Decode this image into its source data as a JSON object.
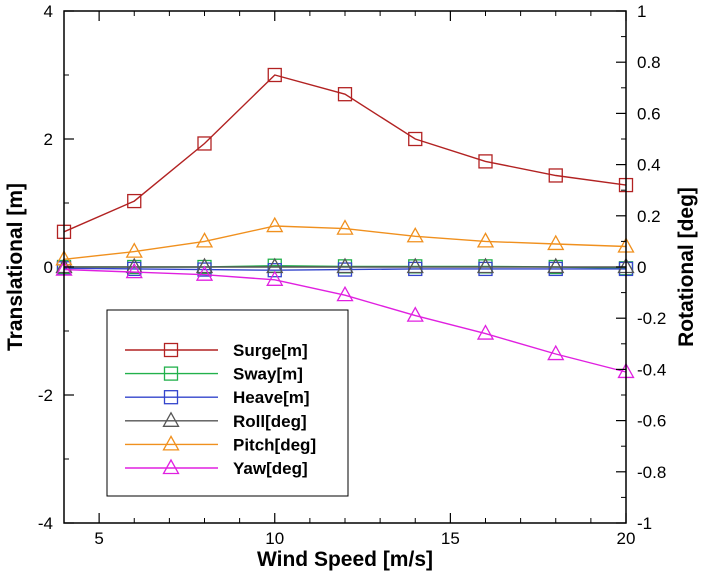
{
  "chart_data": {
    "type": "line",
    "title": "",
    "xlabel": "Wind Speed [m/s]",
    "ylabel": "Translational [m]",
    "y2label": "Rotational [deg]",
    "xlim": [
      4,
      20
    ],
    "ylim": [
      -4,
      4
    ],
    "y2lim": [
      -1,
      1
    ],
    "grid": false,
    "legend_position": "bottom-left",
    "x": [
      4,
      6,
      8,
      10,
      12,
      14,
      16,
      18,
      20
    ],
    "x_ticks": [
      "5",
      "10",
      "15",
      "20"
    ],
    "y_ticks": [
      "4",
      "2",
      "0",
      "-2",
      "-4"
    ],
    "y2_ticks": [
      "1",
      "0.8",
      "0.6",
      "0.4",
      "0.2",
      "0",
      "-0.2",
      "-0.4",
      "-0.6",
      "-0.8",
      "-1"
    ],
    "series": [
      {
        "name": "Surge[m]",
        "axis": "left",
        "color": "#b22222",
        "marker": "square",
        "values": [
          0.55,
          1.03,
          1.93,
          3.0,
          2.7,
          2.0,
          1.65,
          1.43,
          1.28
        ]
      },
      {
        "name": "Sway[m]",
        "axis": "left",
        "color": "#22b14c",
        "marker": "square",
        "values": [
          0.0,
          0.0,
          0.0,
          0.02,
          0.01,
          0.01,
          0.01,
          0.0,
          -0.02
        ]
      },
      {
        "name": "Heave[m]",
        "axis": "left",
        "color": "#3344cc",
        "marker": "square",
        "values": [
          -0.02,
          -0.03,
          -0.04,
          -0.05,
          -0.04,
          -0.03,
          -0.03,
          -0.03,
          -0.03
        ]
      },
      {
        "name": "Roll[deg]",
        "axis": "right",
        "color": "#555555",
        "marker": "triangle",
        "values": [
          0.0,
          0.0,
          0.0,
          0.0,
          0.0,
          0.0,
          0.0,
          0.0,
          0.0
        ]
      },
      {
        "name": "Pitch[deg]",
        "axis": "right",
        "color": "#f0901e",
        "marker": "triangle",
        "values": [
          0.03,
          0.06,
          0.1,
          0.16,
          0.15,
          0.12,
          0.1,
          0.09,
          0.08
        ]
      },
      {
        "name": "Yaw[deg]",
        "axis": "right",
        "color": "#e020e0",
        "marker": "triangle",
        "values": [
          -0.01,
          -0.02,
          -0.03,
          -0.05,
          -0.11,
          -0.19,
          -0.26,
          -0.34,
          -0.41
        ]
      }
    ]
  }
}
